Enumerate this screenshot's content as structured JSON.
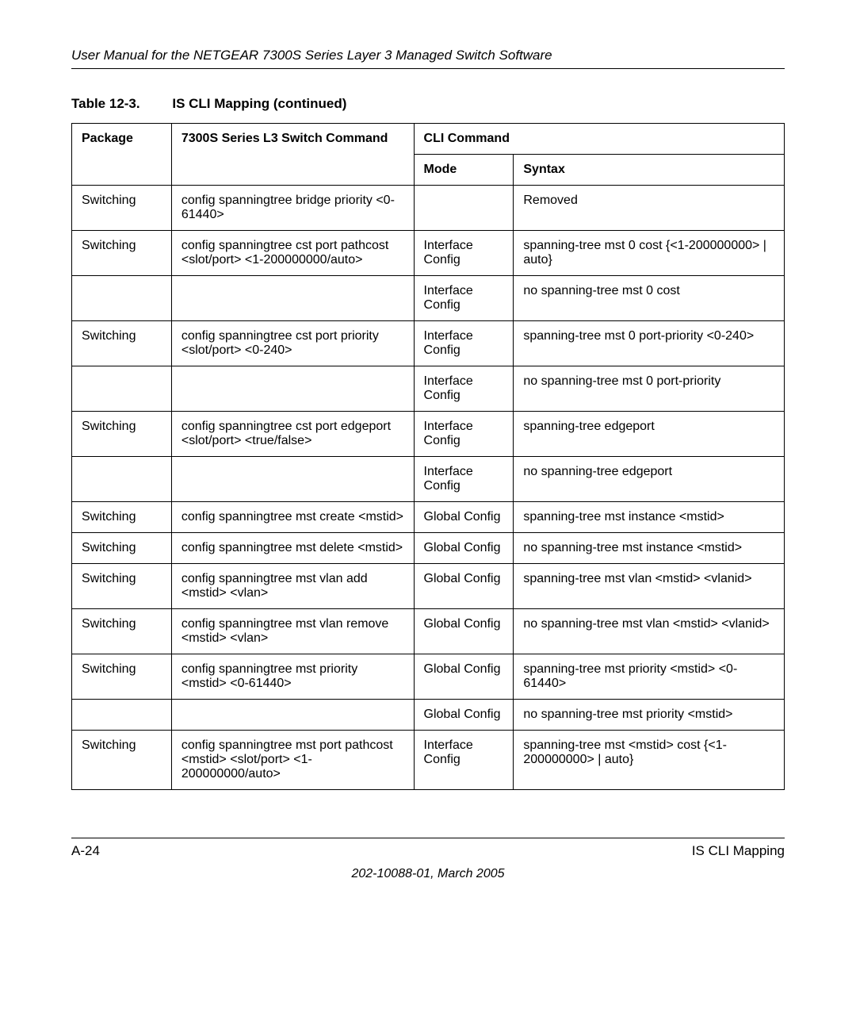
{
  "header_title": "User Manual for the NETGEAR 7300S Series Layer 3 Managed Switch Software",
  "table_caption_num": "Table 12-3.",
  "table_caption_text": "IS CLI Mapping  (continued)",
  "head": {
    "package": "Package",
    "command": "7300S Series L3 Switch Command",
    "cli": "CLI Command",
    "mode": "Mode",
    "syntax": "Syntax"
  },
  "rows": [
    {
      "pkg": "Switching",
      "cmd": "config spanningtree bridge priority <0-61440>",
      "mode": "",
      "syn": "Removed"
    },
    {
      "pkg": "Switching",
      "cmd": "config spanningtree cst port pathcost <slot/port> <1-200000000/auto>",
      "mode": "Interface Config",
      "syn": "spanning-tree mst 0 cost {<1-200000000> | auto}"
    },
    {
      "pkg": "",
      "cmd": "",
      "mode": "Interface Config",
      "syn": "no spanning-tree mst 0 cost"
    },
    {
      "pkg": "Switching",
      "cmd": "config spanningtree cst port priority <slot/port> <0-240>",
      "mode": "Interface Config",
      "syn": "spanning-tree mst 0 port-priority <0-240>"
    },
    {
      "pkg": "",
      "cmd": "",
      "mode": "Interface Config",
      "syn": "no spanning-tree mst 0 port-priority"
    },
    {
      "pkg": "Switching",
      "cmd": "config spanningtree cst port edgeport <slot/port> <true/false>",
      "mode": "Interface Config",
      "syn": "spanning-tree edgeport"
    },
    {
      "pkg": "",
      "cmd": "",
      "mode": "Interface Config",
      "syn": "no spanning-tree edgeport"
    },
    {
      "pkg": "Switching",
      "cmd": "config spanningtree mst create <mstid>",
      "mode": "Global Config",
      "syn": "spanning-tree mst instance <mstid>"
    },
    {
      "pkg": "Switching",
      "cmd": "config spanningtree mst delete <mstid>",
      "mode": "Global Config",
      "syn": "no spanning-tree mst instance <mstid>"
    },
    {
      "pkg": "Switching",
      "cmd": "config spanningtree mst vlan add <mstid> <vlan>",
      "mode": "Global Config",
      "syn": "spanning-tree mst vlan <mstid> <vlanid>"
    },
    {
      "pkg": "Switching",
      "cmd": "config spanningtree mst vlan remove <mstid> <vlan>",
      "mode": "Global Config",
      "syn": "no spanning-tree mst vlan <mstid> <vlanid>"
    },
    {
      "pkg": "Switching",
      "cmd": "config spanningtree mst priority <mstid> <0-61440>",
      "mode": "Global Config",
      "syn": "spanning-tree mst priority <mstid> <0-61440>"
    },
    {
      "pkg": "",
      "cmd": "",
      "mode": "Global Config",
      "syn": "no spanning-tree mst priority <mstid>"
    },
    {
      "pkg": "Switching",
      "cmd": "config spanningtree mst port pathcost <mstid> <slot/port> <1-200000000/auto>",
      "mode": "Interface Config",
      "syn": "spanning-tree mst <mstid> cost {<1-200000000> | auto}"
    }
  ],
  "footer_left": "A-24",
  "footer_right": "IS CLI Mapping",
  "footer_center": "202-10088-01, March 2005"
}
